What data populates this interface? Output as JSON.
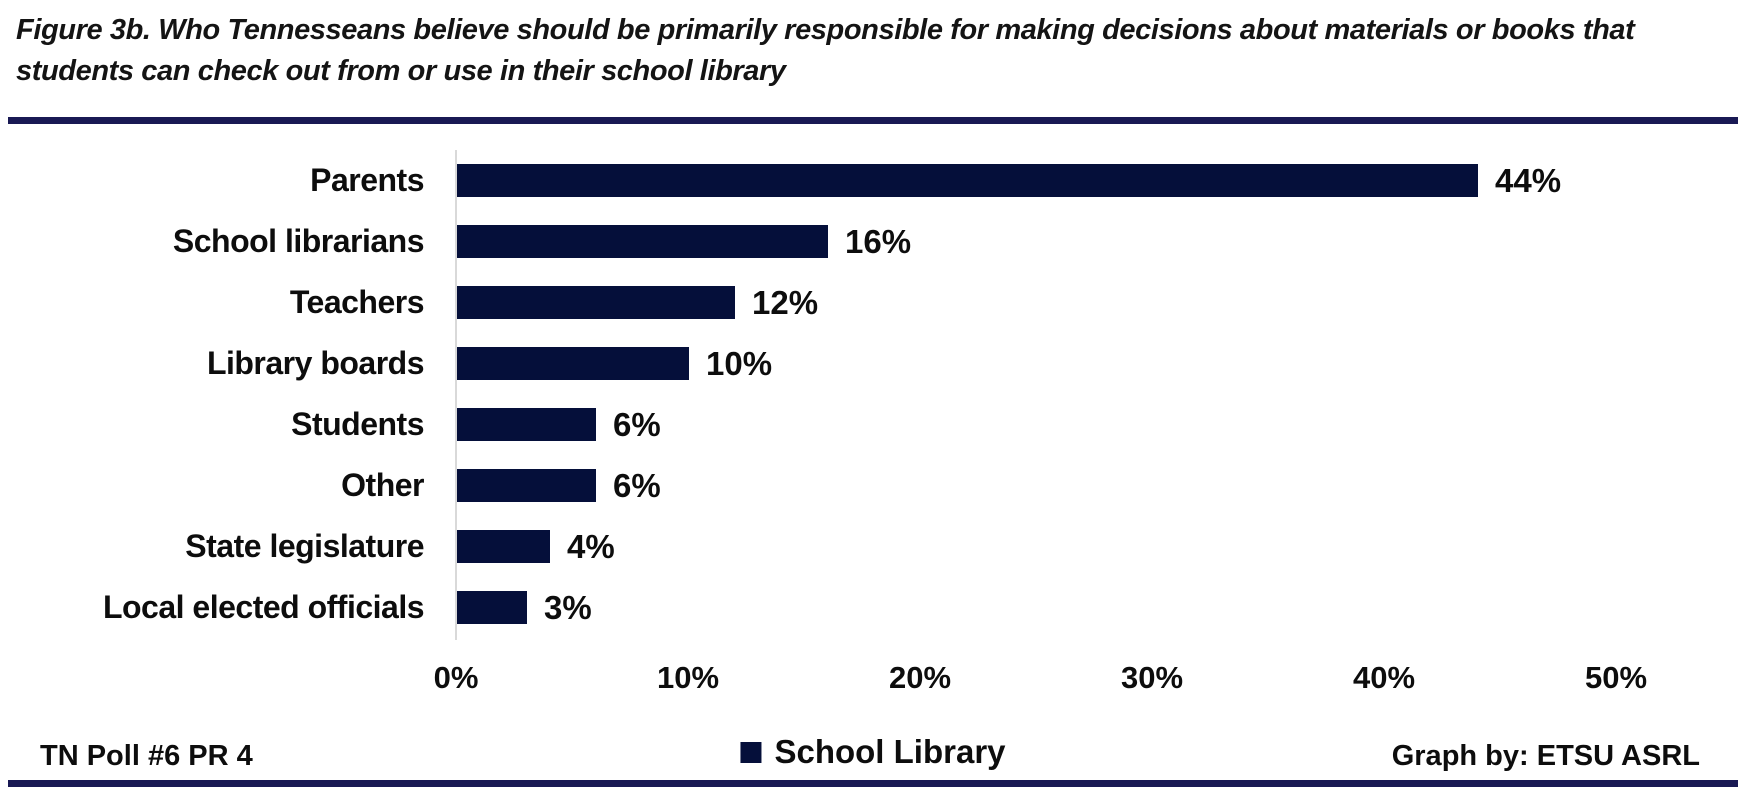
{
  "title": {
    "full": "Figure 3b. Who Tennesseans believe should be primarily responsible for making decisions about materials or books that students can check out from or use in their school library",
    "lines": [
      "Figure 3b. Who Tennesseans believe should be primarily responsible for making decisions about materials or books that",
      "students can check out from or use in their school library"
    ]
  },
  "chart_data": {
    "type": "bar",
    "orientation": "horizontal",
    "categories": [
      "Parents",
      "School librarians",
      "Teachers",
      "Library boards",
      "Students",
      "Other",
      "State legislature",
      "Local elected officials"
    ],
    "values": [
      44,
      16,
      12,
      10,
      6,
      6,
      4,
      3
    ],
    "value_labels": [
      "44%",
      "16%",
      "12%",
      "10%",
      "6%",
      "6%",
      "4%",
      "3%"
    ],
    "x_tick_labels": [
      "0%",
      "10%",
      "20%",
      "30%",
      "40%",
      "50%"
    ],
    "x_tick_values": [
      0,
      10,
      20,
      30,
      40,
      50
    ],
    "xlim": [
      0,
      50
    ],
    "grid": false,
    "legend": {
      "label": "School Library",
      "position": "bottom-center"
    },
    "bar_color": "#050f3a"
  },
  "footer": {
    "left": "TN Poll #6 PR 4",
    "right": "Graph by: ETSU ASRL"
  },
  "colors": {
    "bar": "#050f3a",
    "divider_rule": "#191954",
    "axis_line": "#d9d9d9",
    "text": "#0d0d0d",
    "background": "#ffffff"
  }
}
